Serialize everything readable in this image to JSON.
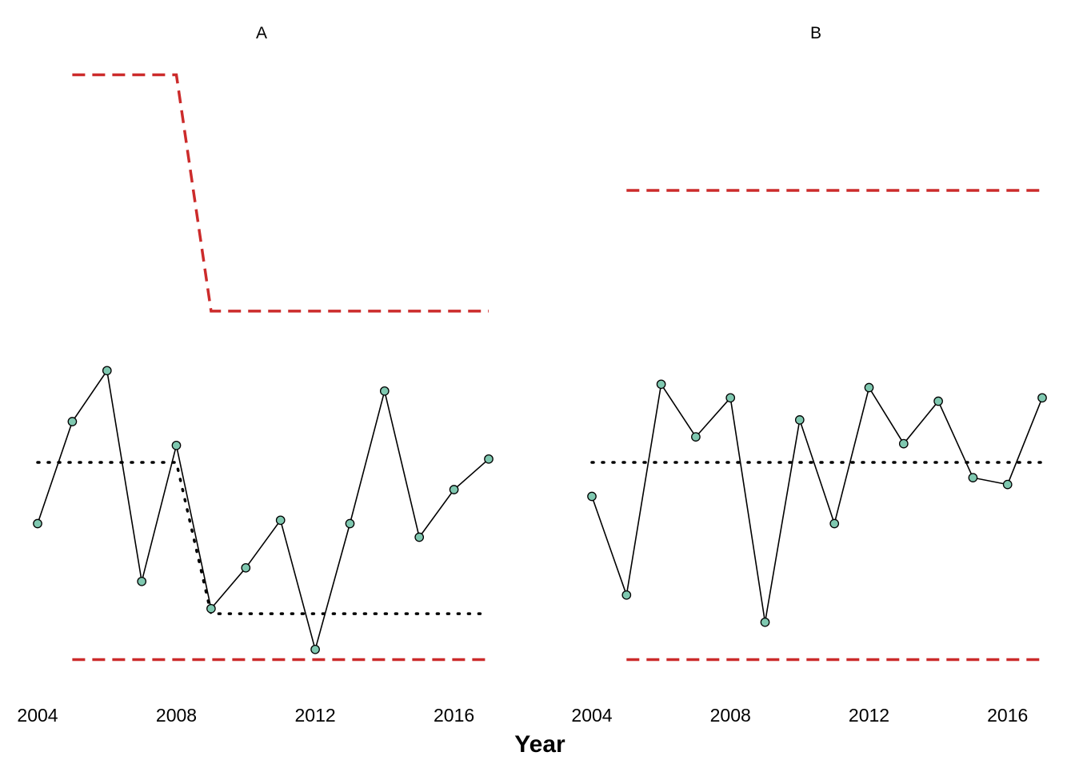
{
  "xlabel": "Year",
  "colors": {
    "series_line": "#000000",
    "point_fill": "#7fc8b0",
    "point_stroke": "#000000",
    "center_line": "#000000",
    "limit_line": "#cc2b2b"
  },
  "chart_data": [
    {
      "type": "line",
      "title": "A",
      "xlim": [
        2004,
        2017
      ],
      "x_ticks": [
        "2004",
        "2008",
        "2012",
        "2016"
      ],
      "grid": false,
      "x": [
        2004,
        2005,
        2006,
        2007,
        2008,
        2009,
        2010,
        2011,
        2012,
        2013,
        2014,
        2015,
        2016,
        2017
      ],
      "values": [
        -1.8,
        1.2,
        2.7,
        -3.5,
        0.5,
        -4.3,
        -3.1,
        -1.7,
        -5.5,
        -1.8,
        2.1,
        -2.2,
        -0.8,
        0.1
      ],
      "center_line": {
        "x": [
          2004,
          2008,
          2009,
          2017
        ],
        "values": [
          0.0,
          0.0,
          -4.45,
          -4.45
        ]
      },
      "upper_limit": {
        "x": [
          2005,
          2008,
          2009,
          2017
        ],
        "values": [
          11.4,
          11.4,
          4.45,
          4.45
        ]
      },
      "lower_limit": {
        "x": [
          2005,
          2017
        ],
        "values": [
          -5.8,
          -5.8
        ]
      }
    },
    {
      "type": "line",
      "title": "B",
      "xlim": [
        2004,
        2017
      ],
      "x_ticks": [
        "2004",
        "2008",
        "2012",
        "2016"
      ],
      "grid": false,
      "x": [
        2004,
        2005,
        2006,
        2007,
        2008,
        2009,
        2010,
        2011,
        2012,
        2013,
        2014,
        2015,
        2016,
        2017
      ],
      "values": [
        -1.0,
        -3.9,
        2.3,
        0.75,
        1.9,
        -4.7,
        1.25,
        -1.8,
        2.2,
        0.55,
        1.8,
        -0.45,
        -0.65,
        1.9
      ],
      "center_line": {
        "x": [
          2004,
          2017
        ],
        "values": [
          0.0,
          0.0
        ]
      },
      "upper_limit": {
        "x": [
          2005,
          2017
        ],
        "values": [
          8.0,
          8.0
        ]
      },
      "lower_limit": {
        "x": [
          2005,
          2017
        ],
        "values": [
          -5.8,
          -5.8
        ]
      }
    }
  ]
}
